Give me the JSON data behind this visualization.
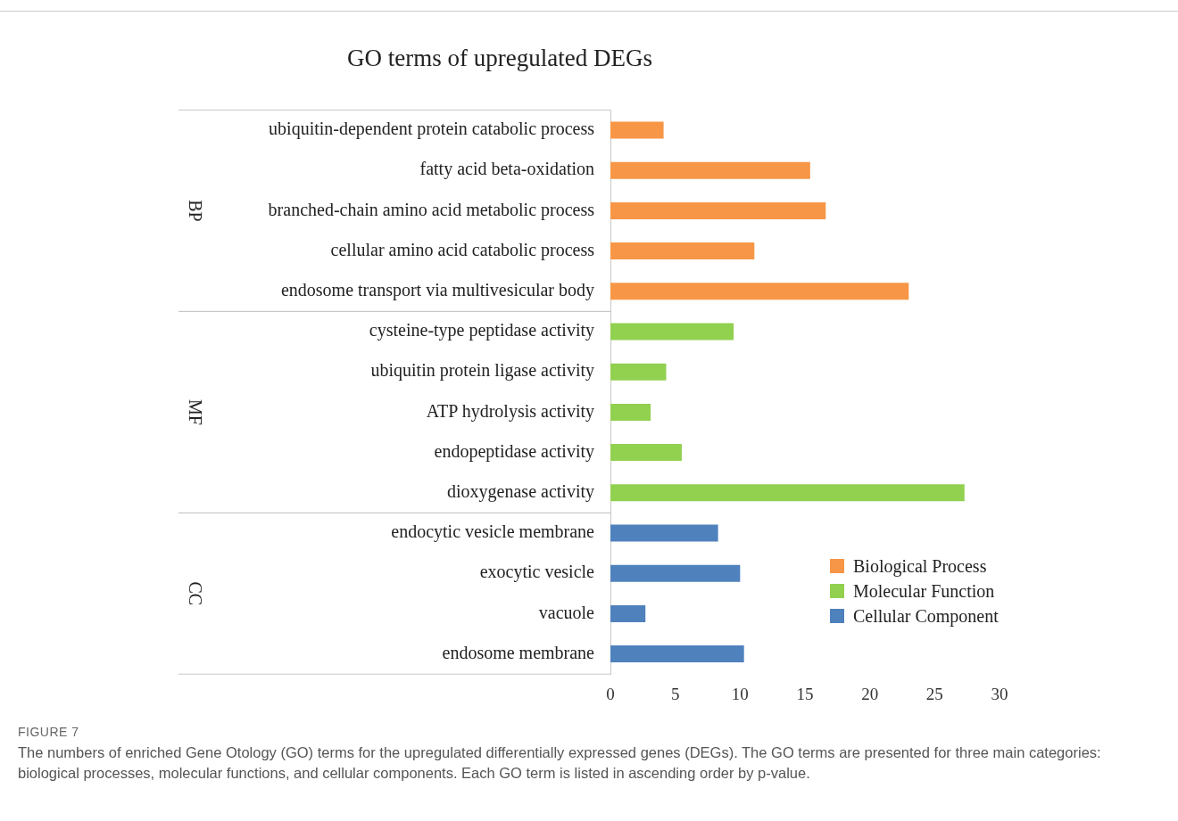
{
  "chart_data": {
    "type": "bar",
    "orientation": "horizontal",
    "title": "GO terms of upregulated DEGs",
    "categories": [
      "ubiquitin-dependent protein catabolic process",
      "fatty acid beta-oxidation",
      "branched-chain amino acid metabolic process",
      "cellular amino acid catabolic process",
      "endosome transport via multivesicular body",
      "cysteine-type peptidase activity",
      "ubiquitin protein ligase activity",
      "ATP hydrolysis activity",
      "endopeptidase activity",
      "dioxygenase activity",
      "endocytic vesicle membrane",
      "exocytic vesicle",
      "vacuole",
      "endosome membrane"
    ],
    "series": [
      {
        "name": "Biological Process",
        "color": "#f79646",
        "values": [
          4.1,
          15.4,
          16.6,
          11.1,
          23.0,
          null,
          null,
          null,
          null,
          null,
          null,
          null,
          null,
          null
        ]
      },
      {
        "name": "Molecular Function",
        "color": "#92d050",
        "values": [
          null,
          null,
          null,
          null,
          null,
          9.5,
          4.3,
          3.1,
          5.5,
          27.3,
          null,
          null,
          null,
          null
        ]
      },
      {
        "name": "Cellular Component",
        "color": "#4f81bd",
        "values": [
          null,
          null,
          null,
          null,
          null,
          null,
          null,
          null,
          null,
          null,
          8.3,
          10.0,
          2.7,
          10.3
        ]
      }
    ],
    "xlim": [
      0,
      30
    ],
    "xticks": [
      0,
      5,
      10,
      15,
      20,
      25,
      30
    ],
    "grid": false,
    "legend": "bottom right",
    "annotations": [
      "BP",
      "MF",
      "CC",
      "FIGURE 7",
      "The numbers of enriched Gene Otology (GO) terms for the upregulated differentially expressed genes (DEGs). The GO terms are presented for three main categories: biological processes, molecular functions, and cellular components. Each GO term is listed in ascending order by p-value."
    ]
  }
}
